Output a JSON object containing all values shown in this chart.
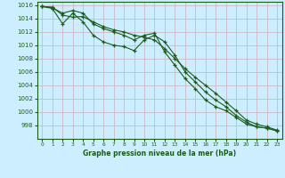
{
  "title": "Graphe pression niveau de la mer (hPa)",
  "background_color": "#cceeff",
  "grid_color": "#d0b8c8",
  "line_color": "#1a5c1a",
  "marker_color": "#1a5c1a",
  "xlim": [
    -0.5,
    23.5
  ],
  "ylim": [
    996,
    1016.5
  ],
  "yticks": [
    998,
    1000,
    1002,
    1004,
    1006,
    1008,
    1010,
    1012,
    1014,
    1016
  ],
  "xticks": [
    0,
    1,
    2,
    3,
    4,
    5,
    6,
    7,
    8,
    9,
    10,
    11,
    12,
    13,
    14,
    15,
    16,
    17,
    18,
    19,
    20,
    21,
    22,
    23
  ],
  "line1": [
    1015.8,
    1015.7,
    1014.5,
    1014.2,
    1014.3,
    1013.5,
    1012.8,
    1012.3,
    1012.0,
    1011.5,
    1011.2,
    1010.8,
    1009.5,
    1008.0,
    1006.5,
    1005.2,
    1004.0,
    1002.8,
    1001.5,
    1000.2,
    998.8,
    998.2,
    997.8,
    997.3
  ],
  "line2": [
    1015.8,
    1015.6,
    1014.8,
    1015.2,
    1014.8,
    1013.2,
    1012.5,
    1012.0,
    1011.5,
    1010.8,
    1011.5,
    1011.8,
    1009.0,
    1007.0,
    1005.0,
    1003.5,
    1001.8,
    1000.8,
    1000.2,
    999.2,
    998.2,
    997.8,
    997.6,
    997.2
  ],
  "line3": [
    1015.8,
    1015.5,
    1013.2,
    1014.8,
    1013.5,
    1011.5,
    1010.5,
    1010.0,
    1009.8,
    1009.2,
    1010.8,
    1011.5,
    1010.5,
    1008.5,
    1006.0,
    1004.5,
    1003.0,
    1001.8,
    1000.8,
    999.5,
    998.5,
    997.8,
    997.6,
    997.2
  ]
}
